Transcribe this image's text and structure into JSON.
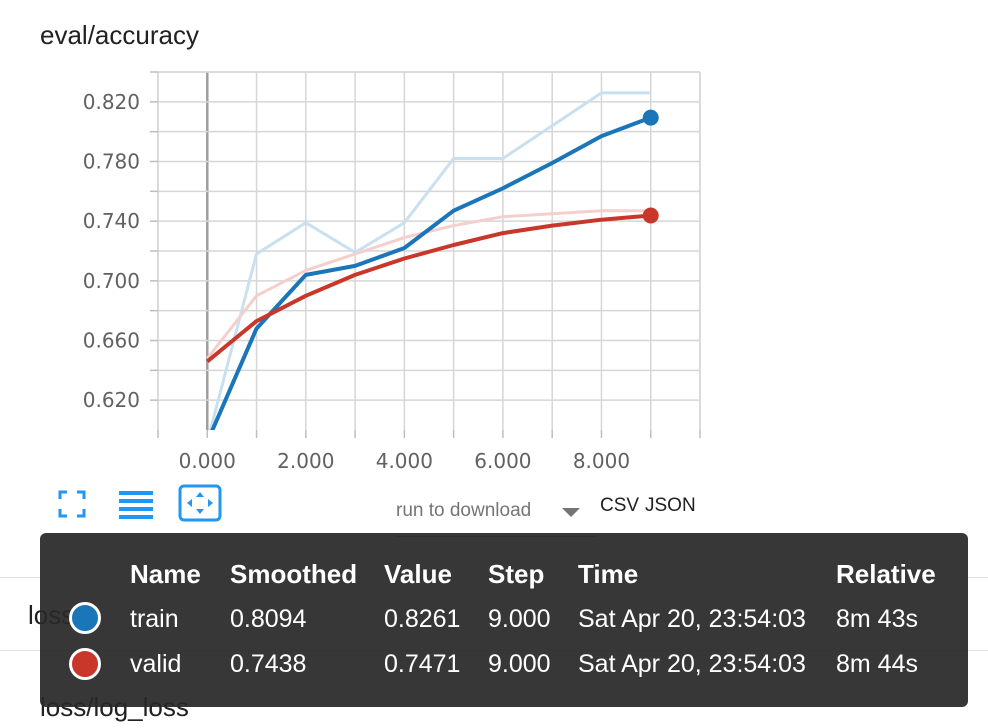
{
  "card": {
    "title": "eval/accuracy"
  },
  "chart_data": {
    "type": "line",
    "title": "eval/accuracy",
    "xlabel": "",
    "ylabel": "",
    "xlim": [
      -1.0,
      10.0
    ],
    "ylim": [
      0.6,
      0.84
    ],
    "x_ticks": [
      "0.000",
      "2.000",
      "4.000",
      "6.000",
      "8.000"
    ],
    "y_ticks": [
      "0.620",
      "0.660",
      "0.700",
      "0.740",
      "0.780",
      "0.820"
    ],
    "grid": true,
    "series": [
      {
        "name": "train",
        "color": "#1a76b9",
        "raw_color": "#c8e0ef",
        "raw": [
          [
            0,
            0.592
          ],
          [
            1,
            0.718
          ],
          [
            2,
            0.739
          ],
          [
            3,
            0.719
          ],
          [
            4,
            0.739
          ],
          [
            5,
            0.782
          ],
          [
            6,
            0.782
          ],
          [
            7,
            0.804
          ],
          [
            8,
            0.826
          ],
          [
            9,
            0.826
          ]
        ],
        "smoothed": [
          [
            0,
            0.592
          ],
          [
            1,
            0.668
          ],
          [
            2,
            0.704
          ],
          [
            3,
            0.71
          ],
          [
            4,
            0.722
          ],
          [
            5,
            0.747
          ],
          [
            6,
            0.762
          ],
          [
            7,
            0.779
          ],
          [
            8,
            0.797
          ],
          [
            9,
            0.8094
          ]
        ]
      },
      {
        "name": "valid",
        "color": "#c8372a",
        "raw_color": "#f4cfcb",
        "raw": [
          [
            0,
            0.648
          ],
          [
            1,
            0.69
          ],
          [
            2,
            0.707
          ],
          [
            3,
            0.718
          ],
          [
            4,
            0.729
          ],
          [
            5,
            0.737
          ],
          [
            6,
            0.743
          ],
          [
            7,
            0.745
          ],
          [
            8,
            0.747
          ],
          [
            9,
            0.747
          ]
        ],
        "smoothed": [
          [
            0,
            0.646
          ],
          [
            1,
            0.673
          ],
          [
            2,
            0.69
          ],
          [
            3,
            0.704
          ],
          [
            4,
            0.715
          ],
          [
            5,
            0.724
          ],
          [
            6,
            0.732
          ],
          [
            7,
            0.737
          ],
          [
            8,
            0.741
          ],
          [
            9,
            0.7438
          ]
        ]
      }
    ]
  },
  "toolbar": {
    "fullscreen_icon": "fullscreen-icon",
    "log_scale_icon": "lines-icon",
    "fit_domain_icon": "fit-domain-icon"
  },
  "download": {
    "placeholder": "run to download",
    "csv": "CSV",
    "json": "JSON"
  },
  "behind": {
    "loss_fragment": "loss",
    "log_loss_title": "loss/log_loss"
  },
  "tooltip": {
    "headers": [
      "Name",
      "Smoothed",
      "Value",
      "Step",
      "Time",
      "Relative"
    ],
    "rows": [
      {
        "name": "train",
        "color": "#1a76b9",
        "smoothed": "0.8094",
        "value": "0.8261",
        "step": "9.000",
        "time": "Sat Apr 20, 23:54:03",
        "relative": "8m 43s"
      },
      {
        "name": "valid",
        "color": "#c8372a",
        "smoothed": "0.7438",
        "value": "0.7471",
        "step": "9.000",
        "time": "Sat Apr 20, 23:54:03",
        "relative": "8m 44s"
      }
    ]
  }
}
